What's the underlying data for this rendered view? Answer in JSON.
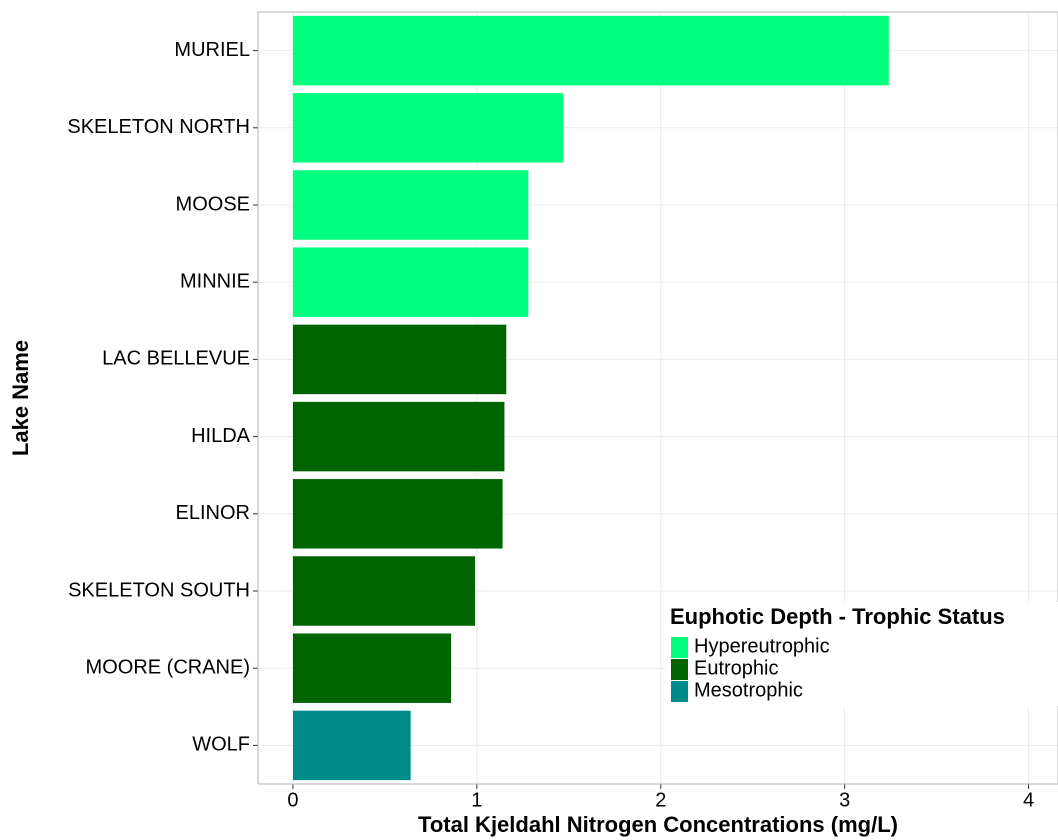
{
  "chart_data": {
    "type": "bar",
    "orientation": "horizontal",
    "x_label": "Total Kjeldahl Nitrogen Concentrations (mg/L)",
    "y_label": "Lake Name",
    "legend_title": "Euphotic Depth - Trophic Status",
    "categories": [
      "MURIEL",
      "SKELETON NORTH",
      "MOOSE",
      "MINNIE",
      "LAC BELLEVUE",
      "HILDA",
      "ELINOR",
      "SKELETON SOUTH",
      "MOORE (CRANE)",
      "WOLF"
    ],
    "series": [
      {
        "name": "Hypereutrophic",
        "color": "#00ff7f",
        "values": [
          3.24,
          1.47,
          1.28,
          1.28,
          null,
          null,
          null,
          null,
          null,
          null
        ]
      },
      {
        "name": "Eutrophic",
        "color": "#006400",
        "values": [
          null,
          null,
          null,
          null,
          1.16,
          1.15,
          1.14,
          0.99,
          0.86,
          null
        ]
      },
      {
        "name": "Mesotrophic",
        "color": "#008b8b",
        "values": [
          null,
          null,
          null,
          null,
          null,
          null,
          null,
          null,
          null,
          0.64
        ]
      }
    ],
    "xlim": [
      -0.19,
      4.16
    ],
    "xticks": [
      0,
      1,
      2,
      3,
      4
    ],
    "grid": true,
    "legend_position": "bottom-right"
  }
}
